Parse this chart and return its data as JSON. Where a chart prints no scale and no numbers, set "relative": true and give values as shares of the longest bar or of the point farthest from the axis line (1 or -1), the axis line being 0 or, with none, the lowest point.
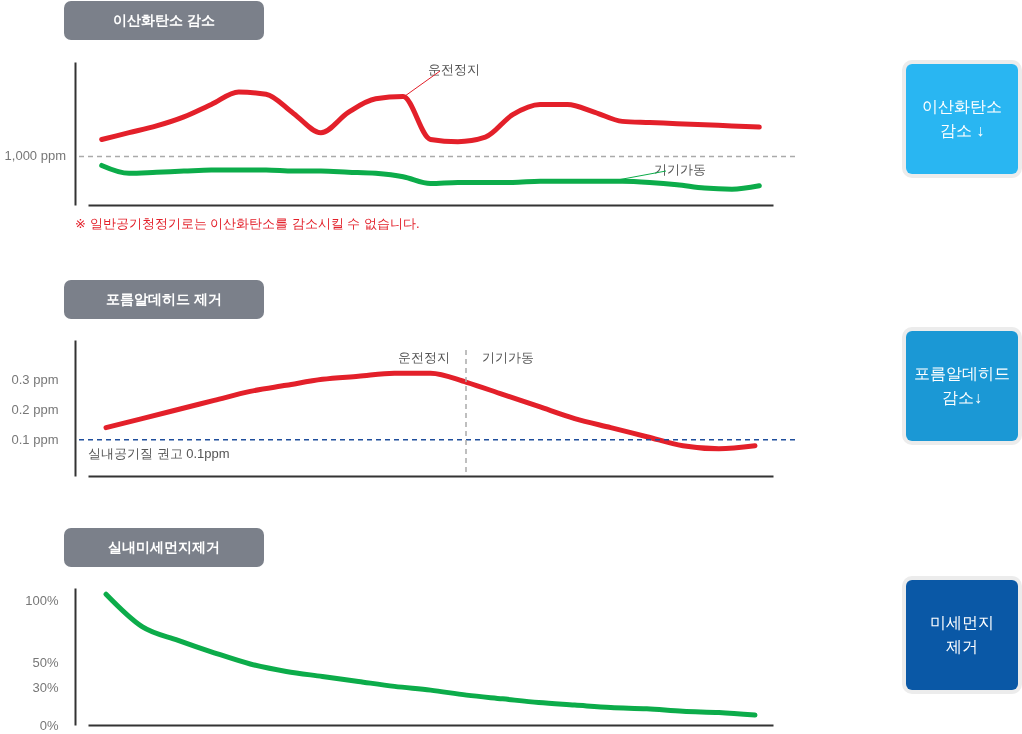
{
  "chart_data": [
    {
      "type": "line",
      "title": "이산화탄소 감소",
      "relative": true,
      "categories": [
        null,
        null,
        null,
        null,
        null,
        null,
        null,
        null,
        null,
        null,
        null,
        null,
        null,
        null,
        null,
        null,
        null,
        null,
        null,
        null,
        null,
        null,
        null,
        null,
        null
      ],
      "series": [
        {
          "color": "#e3202a",
          "values": [
            0.58,
            0.64,
            0.7,
            0.78,
            0.89,
            1,
            0.98,
            0.81,
            0.64,
            0.82,
            0.94,
            0.96,
            0.58,
            0.56,
            0.6,
            0.8,
            0.89,
            0.89,
            0.82,
            0.74,
            0.73,
            0.72,
            0.71,
            0.7,
            0.69
          ]
        },
        {
          "color": "#0cac4a",
          "values": [
            0.35,
            0.28,
            0.29,
            0.3,
            0.31,
            0.31,
            0.31,
            0.3,
            0.3,
            0.29,
            0.28,
            0.25,
            0.19,
            0.2,
            0.2,
            0.2,
            0.21,
            0.21,
            0.21,
            0.21,
            0.2,
            0.18,
            0.15,
            0.14,
            0.17
          ]
        }
      ],
      "ref_lines": [
        {
          "axis": "y",
          "value": 0.43,
          "label": "1,000 ppm",
          "color": "#aaaaaa",
          "line_style": "dashed"
        }
      ],
      "annotations": [
        "운전정지",
        "기기가동",
        "※ 일반공기청정기로는 이산화탄소를 감소시킬 수 없습니다."
      ]
    },
    {
      "type": "other",
      "color": "#29b6f2",
      "annotations": [
        "이산화탄소",
        "감소 ↓"
      ]
    },
    {
      "type": "line",
      "title": "포름알데히드 제거",
      "tick_labels": "y",
      "categories": [
        null,
        null,
        null,
        null,
        null,
        null,
        null,
        null,
        null,
        null,
        null,
        null,
        null,
        null,
        null,
        null,
        null,
        null,
        null
      ],
      "ylim": [
        -0.02,
        0.43
      ],
      "yticks": [
        {
          "value": 0.1,
          "label": "0.1 ppm"
        },
        {
          "value": 0.2,
          "label": "0.2 ppm"
        },
        {
          "value": 0.3,
          "label": "0.3 ppm"
        }
      ],
      "series": [
        {
          "color": "#e3202a",
          "values": [
            0.14,
            0.17,
            0.2,
            0.23,
            0.26,
            0.28,
            0.3,
            0.31,
            0.32,
            0.32,
            0.29,
            0.25,
            0.21,
            0.17,
            0.14,
            0.11,
            0.08,
            0.07,
            0.08
          ]
        }
      ],
      "ref_lines": [
        {
          "axis": "y",
          "value": 0.1,
          "label": "실내공기질 권고 0.1ppm",
          "color": "#1f4e9c",
          "line_style": "dashed"
        }
      ],
      "annotations": [
        "운전정지",
        "기기가동"
      ]
    },
    {
      "type": "other",
      "color": "#1b98d5",
      "annotations": [
        "포름알데히드",
        "감소↓"
      ]
    },
    {
      "type": "line",
      "title": "실내미세먼지제거",
      "tick_labels": "y",
      "categories": [
        null,
        null,
        null,
        null,
        null,
        null,
        null,
        null,
        null,
        null,
        null,
        null,
        null,
        null,
        null,
        null,
        null,
        null,
        null
      ],
      "ylim": [
        0,
        110
      ],
      "yticks": [
        {
          "value": 0,
          "label": "0%"
        },
        {
          "value": 30,
          "label": "30%"
        },
        {
          "value": 50,
          "label": "50%"
        },
        {
          "value": 100,
          "label": "100%"
        }
      ],
      "series": [
        {
          "color": "#0cac4a",
          "values": [
            105,
            79,
            68,
            58,
            49,
            43,
            39,
            35,
            31,
            28,
            24,
            21,
            18,
            16,
            14,
            13,
            11,
            10,
            8
          ]
        }
      ]
    },
    {
      "type": "other",
      "color": "#0a58a6",
      "annotations": [
        "미세먼지",
        "제거"
      ]
    }
  ]
}
